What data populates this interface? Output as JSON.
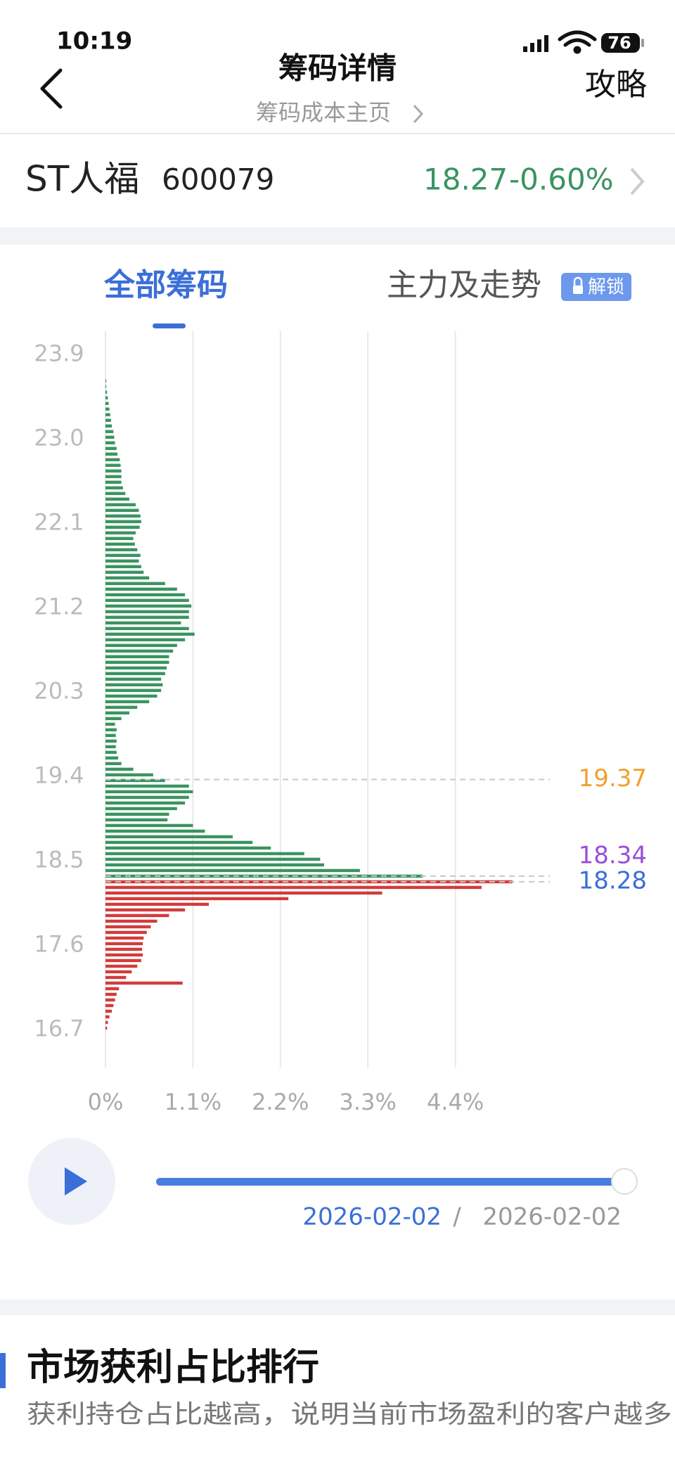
{
  "status_bar": {
    "time": "10:19",
    "battery": "76"
  },
  "header": {
    "title": "筹码详情",
    "subtitle": "筹码成本主页",
    "right_action": "攻略"
  },
  "stock": {
    "name": "ST人福",
    "code": "600079",
    "price": "18.27",
    "change": "-0.60%"
  },
  "tabs": {
    "items": [
      "全部筹码",
      "主力及走势"
    ],
    "badge": "解锁"
  },
  "chart": {
    "type": "bar",
    "orientation": "horizontal",
    "xlim": [
      0,
      5.5
    ],
    "xticks": [
      {
        "value": 0,
        "label": "0%"
      },
      {
        "value": 1.1,
        "label": "1.1%"
      },
      {
        "value": 2.2,
        "label": "2.2%"
      },
      {
        "value": 3.3,
        "label": "3.3%"
      },
      {
        "value": 4.4,
        "label": "4.4%"
      }
    ],
    "ylim": [
      16.3,
      24.15
    ],
    "yticks": [
      16.7,
      17.6,
      18.5,
      19.4,
      20.3,
      21.2,
      22.1,
      {
        "value": 23,
        "label": "23.0"
      },
      23.9
    ],
    "grid": true,
    "series": [
      {
        "color": "#d23c3c",
        "y": [
          16.72,
          16.78,
          16.84,
          16.9,
          16.96,
          17.02,
          17.08,
          17.14,
          17.2,
          17.26,
          17.32,
          17.38,
          17.44,
          17.5,
          17.56,
          17.62,
          17.68,
          17.74,
          17.8,
          17.86,
          17.92,
          17.98,
          18.04,
          18.1,
          18.16,
          18.22,
          18.28
        ],
        "values": [
          0.02,
          0.03,
          0.05,
          0.08,
          0.1,
          0.12,
          0.14,
          0.17,
          0.97,
          0.26,
          0.33,
          0.4,
          0.45,
          0.47,
          0.46,
          0.47,
          0.48,
          0.52,
          0.57,
          0.65,
          0.8,
          1.0,
          1.3,
          2.3,
          3.48,
          4.73,
          5.12
        ]
      },
      {
        "color": "#3a9460",
        "y": [
          18.34,
          18.4,
          18.46,
          18.52,
          18.58,
          18.64,
          18.7,
          18.76,
          18.82,
          18.88,
          18.94,
          19.0,
          19.06,
          19.12,
          19.18,
          19.24,
          19.3,
          19.36,
          19.42,
          19.48,
          19.54,
          19.6,
          19.66,
          19.72,
          19.78,
          19.84,
          19.9,
          19.96,
          20.02,
          20.08,
          20.14,
          20.2,
          20.26,
          20.32,
          20.38,
          20.44,
          20.5,
          20.56,
          20.62,
          20.68,
          20.74,
          20.8,
          20.86,
          20.92,
          20.98,
          21.04,
          21.1,
          21.16,
          21.22,
          21.28,
          21.34,
          21.4,
          21.46,
          21.52,
          21.58,
          21.64,
          21.7,
          21.76,
          21.82,
          21.88,
          21.94,
          22.0,
          22.06,
          22.12,
          22.18,
          22.24,
          22.3,
          22.36,
          22.42,
          22.48,
          22.54,
          22.6,
          22.66,
          22.72,
          22.78,
          22.84,
          22.9,
          22.96,
          23.02,
          23.08,
          23.14,
          23.2,
          23.26,
          23.32,
          23.38,
          23.44,
          23.5,
          23.56,
          23.62
        ],
        "values": [
          3.99,
          3.2,
          2.75,
          2.7,
          2.5,
          2.08,
          1.85,
          1.6,
          1.25,
          1.1,
          0.78,
          0.8,
          0.9,
          1.0,
          1.05,
          1.1,
          1.05,
          0.75,
          0.6,
          0.35,
          0.2,
          0.16,
          0.14,
          0.13,
          0.14,
          0.13,
          0.14,
          0.12,
          0.2,
          0.3,
          0.4,
          0.55,
          0.65,
          0.7,
          0.72,
          0.7,
          0.75,
          0.77,
          0.8,
          0.8,
          0.85,
          0.9,
          1.0,
          1.12,
          1.05,
          0.95,
          1.05,
          1.05,
          1.08,
          1.05,
          1.0,
          0.9,
          0.75,
          0.55,
          0.48,
          0.45,
          0.42,
          0.44,
          0.4,
          0.37,
          0.35,
          0.38,
          0.43,
          0.45,
          0.44,
          0.42,
          0.38,
          0.3,
          0.25,
          0.22,
          0.2,
          0.2,
          0.2,
          0.19,
          0.18,
          0.15,
          0.14,
          0.12,
          0.11,
          0.1,
          0.08,
          0.07,
          0.06,
          0.05,
          0.04,
          0.03,
          0.02,
          0.01,
          0.01
        ]
      }
    ],
    "reference_lines": [
      {
        "value": 19.37,
        "color": "#f0a030"
      },
      {
        "value": 18.34,
        "color": "#9b4fd8"
      },
      {
        "value": 18.28,
        "color": "#3b6fd8"
      }
    ]
  },
  "timeline": {
    "current_date": "2026-02-02",
    "separator": "/",
    "end_date": "2026-02-02"
  },
  "section": {
    "title": "市场获利占比排行",
    "subtitle": "获利持仓占比越高，说明当前市场盈利的客户越多"
  }
}
